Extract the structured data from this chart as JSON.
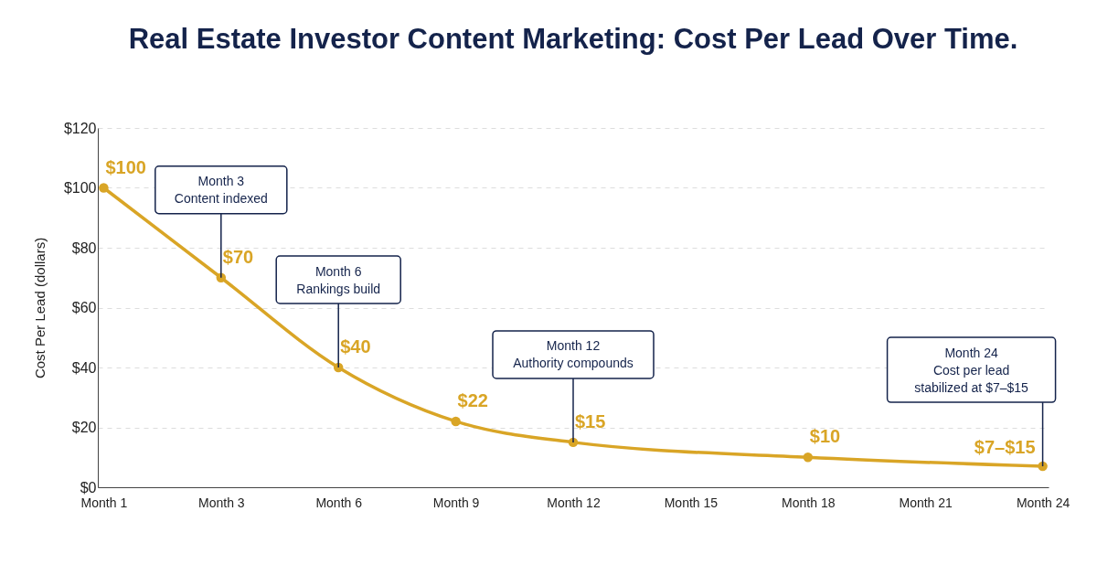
{
  "chart_data": {
    "type": "line",
    "title": "Real Estate Investor Content Marketing: Cost Per Lead Over Time.",
    "ylabel": "Cost Per Lead (dollars)",
    "categories": [
      "Month 1",
      "Month 3",
      "Month 6",
      "Month 9",
      "Month 12",
      "Month 15",
      "Month 18",
      "Month 21",
      "Month 24"
    ],
    "series": [
      {
        "color": "#d9a526",
        "values": [
          100,
          70,
          40,
          22,
          15,
          null,
          10,
          null,
          7
        ],
        "value_labels": [
          "$100",
          "$70",
          "$40",
          "$22",
          "$15",
          null,
          "$10",
          null,
          "$7–$15"
        ]
      }
    ],
    "ylim": [
      0,
      120
    ],
    "yticks": [
      {
        "value": 0,
        "label": "$0"
      },
      {
        "value": 20,
        "label": "$20"
      },
      {
        "value": 40,
        "label": "$40"
      },
      {
        "value": 60,
        "label": "$60"
      },
      {
        "value": 80,
        "label": "$80"
      },
      {
        "value": 100,
        "label": "$100"
      },
      {
        "value": 120,
        "label": "$120"
      }
    ],
    "grid": "y",
    "marker": "circle",
    "line_style": "solid",
    "annotations": [
      {
        "text": "Month 3\nContent indexed",
        "x": "Month 3",
        "y": 70
      },
      {
        "text": "Month 6\nRankings build",
        "x": "Month 6",
        "y": 40
      },
      {
        "text": "Month 12\nAuthority compounds",
        "x": "Month 12",
        "y": 15
      },
      {
        "text": "Month 24\nCost per lead\nstabilized at $7–$15",
        "x": "Month 24",
        "y": 7
      }
    ]
  }
}
